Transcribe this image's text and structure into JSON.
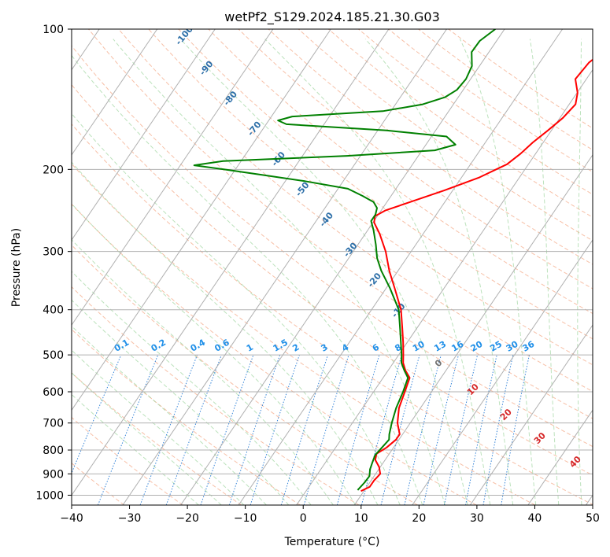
{
  "chart_data": {
    "type": "line",
    "title": "wetPf2_S129.2024.185.21.30.G03",
    "xlabel": "Temperature (°C)",
    "ylabel": "Pressure (hPa)",
    "xlim": [
      -40,
      50
    ],
    "ylim": [
      1050,
      100
    ],
    "y_scale": "log",
    "xticks": [
      -40,
      -30,
      -20,
      -10,
      0,
      10,
      20,
      30,
      40,
      50
    ],
    "yticks": [
      1000,
      900,
      800,
      700,
      600,
      500,
      400,
      300,
      200,
      100
    ],
    "grid": true,
    "skew_t": true,
    "series": [
      {
        "key": "temperature",
        "color": "#ff0000",
        "points": [
          {
            "p": 980,
            "t": 9.5
          },
          {
            "p": 960,
            "t": 10.5
          },
          {
            "p": 930,
            "t": 10.5
          },
          {
            "p": 900,
            "t": 10.8
          },
          {
            "p": 870,
            "t": 9.8
          },
          {
            "p": 840,
            "t": 8.3
          },
          {
            "p": 815,
            "t": 7.8
          },
          {
            "p": 790,
            "t": 8.8
          },
          {
            "p": 760,
            "t": 9.5
          },
          {
            "p": 740,
            "t": 9.5
          },
          {
            "p": 700,
            "t": 7.8
          },
          {
            "p": 650,
            "t": 6.3
          },
          {
            "p": 600,
            "t": 5.4
          },
          {
            "p": 560,
            "t": 4.6
          },
          {
            "p": 540,
            "t": 3.0
          },
          {
            "p": 520,
            "t": 1.7
          },
          {
            "p": 500,
            "t": 0.8
          },
          {
            "p": 470,
            "t": -0.7
          },
          {
            "p": 440,
            "t": -2.4
          },
          {
            "p": 400,
            "t": -4.9
          },
          {
            "p": 360,
            "t": -8.5
          },
          {
            "p": 330,
            "t": -11.5
          },
          {
            "p": 300,
            "t": -14.4
          },
          {
            "p": 275,
            "t": -17.5
          },
          {
            "p": 260,
            "t": -19.8
          },
          {
            "p": 252,
            "t": -20.4
          },
          {
            "p": 245,
            "t": -19.3
          },
          {
            "p": 235,
            "t": -16.0
          },
          {
            "p": 222,
            "t": -11.5
          },
          {
            "p": 208,
            "t": -6.9
          },
          {
            "p": 195,
            "t": -3.7
          },
          {
            "p": 185,
            "t": -2.6
          },
          {
            "p": 175,
            "t": -1.8
          },
          {
            "p": 165,
            "t": -0.6
          },
          {
            "p": 155,
            "t": 0.5
          },
          {
            "p": 145,
            "t": 1.1
          },
          {
            "p": 137,
            "t": 0.1
          },
          {
            "p": 128,
            "t": -1.9
          },
          {
            "p": 118,
            "t": -1.5
          },
          {
            "p": 110,
            "t": 0.0
          },
          {
            "p": 100,
            "t": 0.6
          }
        ]
      },
      {
        "key": "dewpoint",
        "color": "#008000",
        "points": [
          {
            "p": 975,
            "t": 8.8
          },
          {
            "p": 940,
            "t": 9.1
          },
          {
            "p": 910,
            "t": 9.2
          },
          {
            "p": 880,
            "t": 8.5
          },
          {
            "p": 850,
            "t": 8.1
          },
          {
            "p": 820,
            "t": 7.7
          },
          {
            "p": 790,
            "t": 8.0
          },
          {
            "p": 760,
            "t": 8.3
          },
          {
            "p": 740,
            "t": 7.7
          },
          {
            "p": 700,
            "t": 6.8
          },
          {
            "p": 650,
            "t": 5.8
          },
          {
            "p": 600,
            "t": 5.1
          },
          {
            "p": 560,
            "t": 4.3
          },
          {
            "p": 540,
            "t": 2.8
          },
          {
            "p": 520,
            "t": 1.4
          },
          {
            "p": 500,
            "t": 0.5
          },
          {
            "p": 470,
            "t": -1.1
          },
          {
            "p": 440,
            "t": -2.8
          },
          {
            "p": 400,
            "t": -5.3
          },
          {
            "p": 360,
            "t": -9.3
          },
          {
            "p": 330,
            "t": -12.9
          },
          {
            "p": 310,
            "t": -15.1
          },
          {
            "p": 290,
            "t": -16.9
          },
          {
            "p": 270,
            "t": -19.0
          },
          {
            "p": 258,
            "t": -20.5
          },
          {
            "p": 250,
            "t": -20.5
          },
          {
            "p": 242,
            "t": -21.0
          },
          {
            "p": 235,
            "t": -22.3
          },
          {
            "p": 228,
            "t": -24.9
          },
          {
            "p": 220,
            "t": -28.3
          },
          {
            "p": 212,
            "t": -36.6
          },
          {
            "p": 205,
            "t": -45.3
          },
          {
            "p": 200,
            "t": -52.0
          },
          {
            "p": 196,
            "t": -57.6
          },
          {
            "p": 192,
            "t": -53.1
          },
          {
            "p": 187,
            "t": -32.3
          },
          {
            "p": 182,
            "t": -17.8
          },
          {
            "p": 177,
            "t": -14.9
          },
          {
            "p": 170,
            "t": -17.4
          },
          {
            "p": 165,
            "t": -28.5
          },
          {
            "p": 160,
            "t": -46.5
          },
          {
            "p": 157,
            "t": -48.4
          },
          {
            "p": 154,
            "t": -46.4
          },
          {
            "p": 150,
            "t": -31.4
          },
          {
            "p": 145,
            "t": -25.3
          },
          {
            "p": 140,
            "t": -22.3
          },
          {
            "p": 135,
            "t": -21.1
          },
          {
            "p": 128,
            "t": -20.8
          },
          {
            "p": 120,
            "t": -21.3
          },
          {
            "p": 112,
            "t": -23.0
          },
          {
            "p": 106,
            "t": -22.9
          },
          {
            "p": 100,
            "t": -21.6
          }
        ]
      }
    ],
    "mixing_ratio_labels": [
      "0.1",
      "0.2",
      "0.4",
      "0.6",
      "1",
      "1.5",
      "2",
      "3",
      "4",
      "6",
      "8",
      "10",
      "13",
      "16",
      "20",
      "25",
      "30",
      "36"
    ],
    "dry_adiabat_labels": [
      "-100",
      "-90",
      "-80",
      "-70",
      "-60",
      "-50",
      "-40",
      "-30",
      "-20",
      "-10"
    ],
    "moist_adiabat_labels": [
      "0",
      "10",
      "20",
      "30",
      "40"
    ]
  }
}
